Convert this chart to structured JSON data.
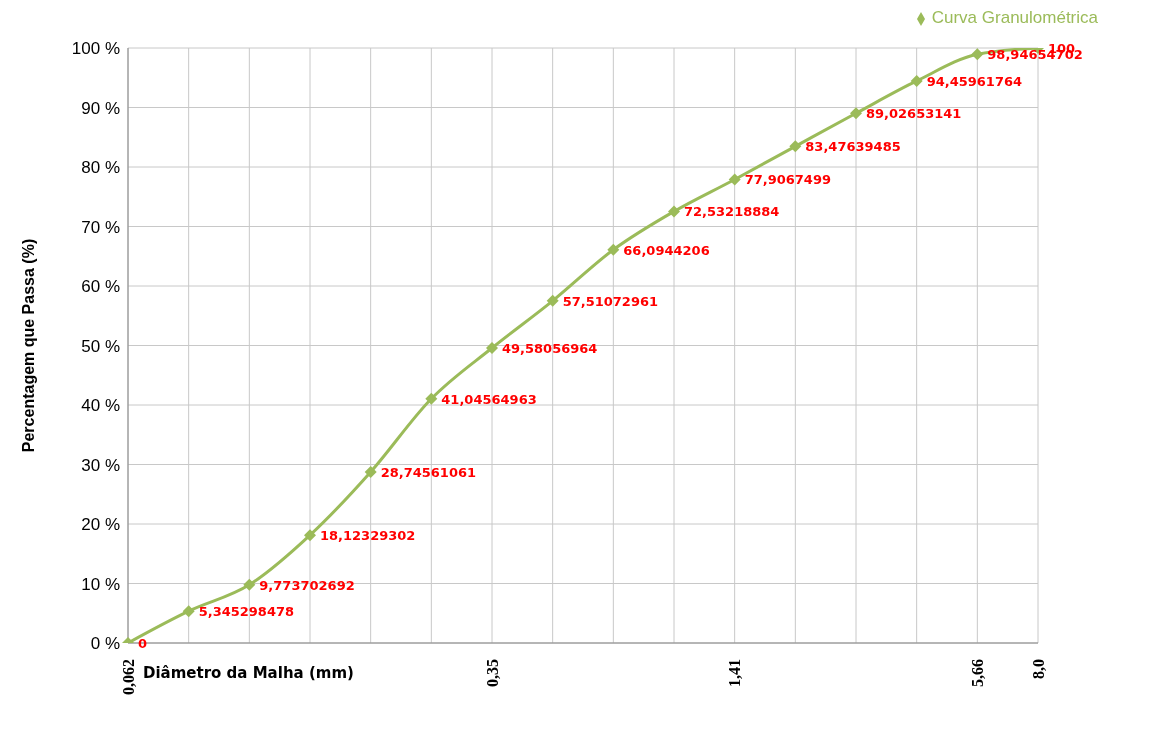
{
  "chart_data": {
    "type": "line",
    "xlabel": "Diâmetro da Malha (mm)",
    "ylabel": "Percentagem que Passa (%)",
    "categories": [
      "0,062",
      null,
      null,
      null,
      null,
      null,
      "0,35",
      null,
      null,
      null,
      "1,41",
      null,
      null,
      null,
      "5,66",
      "8,0"
    ],
    "series": [
      {
        "name": "Curva Granulométrica",
        "color": "#9bbb59",
        "values": [
          0,
          5.345298478,
          9.773702692,
          18.12329302,
          28.74561061,
          41.04564963,
          49.58056964,
          57.51072961,
          66.0944206,
          72.53218884,
          77.9067499,
          83.47639485,
          89.02653141,
          94.45961764,
          98.94654702,
          100
        ],
        "value_labels": [
          "0",
          "5,345298478",
          "9,773702692",
          "18,12329302",
          "28,74561061",
          "41,04564963",
          "49,58056964",
          "57,51072961",
          "66,0944206",
          "72,53218884",
          "77,9067499",
          "83,47639485",
          "89,02653141",
          "94,45961764",
          "98,94654702",
          "100"
        ]
      }
    ],
    "ylim": [
      0,
      100
    ],
    "yticks": [
      {
        "value": 0,
        "label": "0 %"
      },
      {
        "value": 10,
        "label": "10 %"
      },
      {
        "value": 20,
        "label": "20 %"
      },
      {
        "value": 30,
        "label": "30 %"
      },
      {
        "value": 40,
        "label": "40 %"
      },
      {
        "value": 50,
        "label": "50 %"
      },
      {
        "value": 60,
        "label": "60 %"
      },
      {
        "value": 70,
        "label": "70 %"
      },
      {
        "value": 80,
        "label": "80 %"
      },
      {
        "value": 90,
        "label": "90 %"
      },
      {
        "value": 100,
        "label": "100 %"
      }
    ],
    "grid": true,
    "legend": "top right",
    "marker": "diamond",
    "line_style": "solid"
  }
}
